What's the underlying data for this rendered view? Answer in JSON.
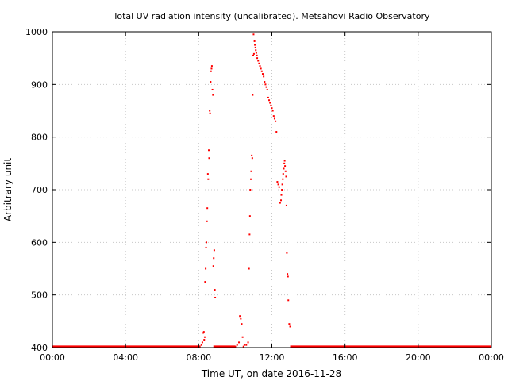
{
  "chart_data": {
    "type": "scatter",
    "title": "Total UV radiation intensity (uncalibrated). Metsähovi Radio Observatory",
    "xlabel": "Time UT, on date 2016-11-28",
    "ylabel": "Arbitrary unit",
    "xlim": [
      0,
      24
    ],
    "ylim": [
      400,
      1000
    ],
    "x_ticks": [
      {
        "value": 0,
        "label": "00:00"
      },
      {
        "value": 4,
        "label": "04:00"
      },
      {
        "value": 8,
        "label": "08:00"
      },
      {
        "value": 12,
        "label": "12:00"
      },
      {
        "value": 16,
        "label": "16:00"
      },
      {
        "value": 20,
        "label": "20:00"
      },
      {
        "value": 24,
        "label": "00:00"
      }
    ],
    "y_ticks": [
      {
        "value": 400,
        "label": "400"
      },
      {
        "value": 500,
        "label": "500"
      },
      {
        "value": 600,
        "label": "600"
      },
      {
        "value": 700,
        "label": "700"
      },
      {
        "value": 800,
        "label": "800"
      },
      {
        "value": 900,
        "label": "900"
      },
      {
        "value": 1000,
        "label": "1000"
      }
    ],
    "grid": true,
    "marker_color": "#ff0000",
    "baseline": {
      "value": 402,
      "x_ranges": [
        [
          0,
          8.1
        ],
        [
          8.8,
          10.0
        ],
        [
          13.0,
          24.0
        ]
      ]
    },
    "x": [
      8.15,
      8.2,
      8.25,
      8.28,
      8.3,
      8.33,
      8.35,
      8.38,
      8.4,
      8.42,
      8.45,
      8.47,
      8.5,
      8.52,
      8.55,
      8.57,
      8.6,
      8.62,
      8.65,
      8.67,
      8.7,
      8.72,
      8.75,
      8.78,
      8.8,
      8.82,
      8.85,
      8.88,
      8.9,
      10.0,
      10.1,
      10.2,
      10.25,
      10.3,
      10.35,
      10.4,
      10.45,
      10.5,
      10.6,
      10.7,
      10.75,
      10.78,
      10.8,
      10.82,
      10.85,
      10.87,
      10.9,
      10.93,
      10.95,
      10.98,
      11.0,
      11.02,
      11.05,
      11.07,
      11.1,
      11.12,
      11.15,
      11.18,
      11.2,
      11.25,
      11.3,
      11.35,
      11.4,
      11.45,
      11.5,
      11.55,
      11.6,
      11.65,
      11.7,
      11.75,
      11.8,
      11.85,
      11.9,
      11.95,
      12.0,
      12.05,
      12.1,
      12.15,
      12.2,
      12.25,
      12.3,
      12.35,
      12.4,
      12.45,
      12.5,
      12.52,
      12.55,
      12.57,
      12.6,
      12.62,
      12.65,
      12.68,
      12.7,
      12.72,
      12.75,
      12.78,
      12.8,
      12.82,
      12.85,
      12.88,
      12.9,
      12.95,
      13.0
    ],
    "y": [
      405,
      410,
      428,
      430,
      415,
      420,
      525,
      550,
      590,
      600,
      640,
      665,
      730,
      720,
      775,
      760,
      850,
      845,
      905,
      925,
      930,
      935,
      890,
      880,
      555,
      570,
      585,
      510,
      495,
      402,
      405,
      410,
      460,
      455,
      445,
      420,
      402,
      405,
      405,
      410,
      550,
      615,
      650,
      700,
      720,
      735,
      765,
      760,
      880,
      955,
      995,
      958,
      982,
      975,
      970,
      965,
      960,
      955,
      950,
      945,
      940,
      935,
      930,
      925,
      920,
      915,
      905,
      900,
      895,
      890,
      875,
      870,
      865,
      860,
      855,
      850,
      840,
      835,
      830,
      810,
      715,
      710,
      705,
      675,
      680,
      690,
      700,
      710,
      720,
      730,
      740,
      750,
      755,
      745,
      735,
      725,
      670,
      580,
      540,
      535,
      490,
      445,
      440
    ]
  }
}
